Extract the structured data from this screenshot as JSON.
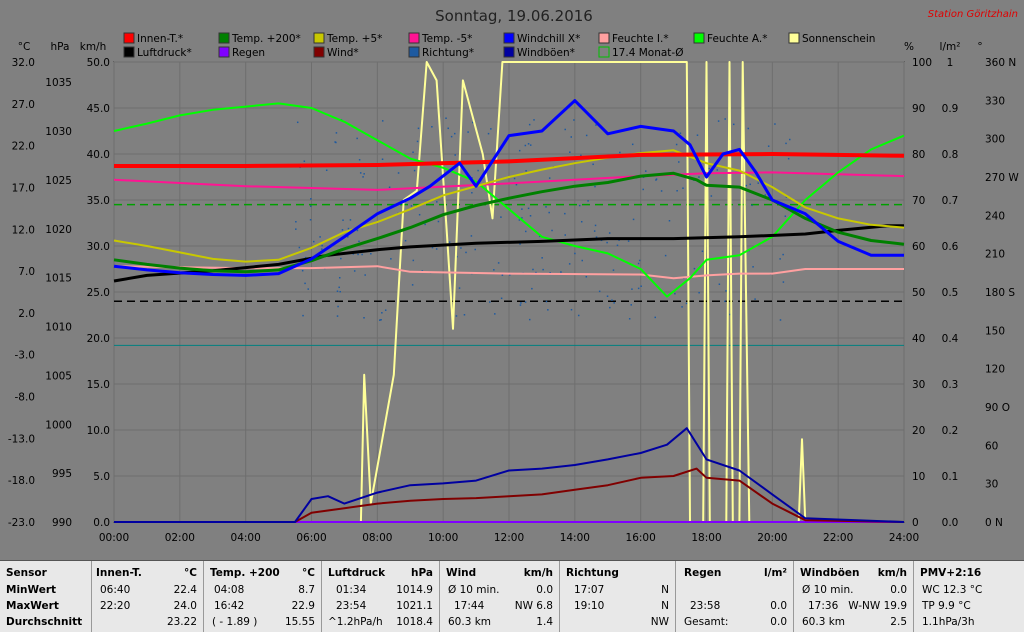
{
  "header": {
    "title": "Sonntag, 19.06.2016",
    "station": "Station Göritzhain"
  },
  "legend": [
    {
      "label": "Innen-T.*",
      "color": "#ff0000",
      "hollow": false
    },
    {
      "label": "Temp. +200*",
      "color": "#008000",
      "hollow": false
    },
    {
      "label": "Temp. +5*",
      "color": "#c8c800",
      "hollow": false
    },
    {
      "label": "Temp. -5*",
      "color": "#ff1493",
      "hollow": false
    },
    {
      "label": "Windchill X*",
      "color": "#0000ff",
      "hollow": false
    },
    {
      "label": "Feuchte I.*",
      "color": "#ffa0a0",
      "hollow": false
    },
    {
      "label": "Feuchte A.*",
      "color": "#00ff00",
      "hollow": false
    },
    {
      "label": "Sonnenschein",
      "color": "#ffff99",
      "hollow": false
    },
    {
      "label": "Luftdruck*",
      "color": "#000000",
      "hollow": false
    },
    {
      "label": "Regen",
      "color": "#8000ff",
      "hollow": false
    },
    {
      "label": "Wind*",
      "color": "#800000",
      "hollow": false
    },
    {
      "label": "Richtung*",
      "color": "#1e5aa0",
      "hollow": false
    },
    {
      "label": "Windböen*",
      "color": "#0000a0",
      "hollow": false
    },
    {
      "label": "17.4 Monat-Ø",
      "color": "#00c000",
      "hollow": true
    }
  ],
  "axes": {
    "units": {
      "temp": "°C",
      "press": "hPa",
      "wind": "km/h",
      "hum": "%",
      "rain": "l/m²",
      "dir": "°"
    },
    "temp_ticks": [
      "32.0",
      "27.0",
      "22.0",
      "17.0",
      "12.0",
      "7.0",
      "2.0",
      "-3.0",
      "-8.0",
      "-13.0",
      "-18.0",
      "-23.0"
    ],
    "press_ticks": [
      "1035",
      "1030",
      "1025",
      "1020",
      "1015",
      "1010",
      "1005",
      "1000",
      "995",
      "990"
    ],
    "wind_ticks": [
      "50.0",
      "45.0",
      "40.0",
      "35.0",
      "30.0",
      "25.0",
      "20.0",
      "15.0",
      "10.0",
      "5.0",
      "0.0"
    ],
    "hum_ticks": [
      "100",
      "90",
      "80",
      "70",
      "60",
      "50",
      "40",
      "30",
      "20",
      "10",
      "0"
    ],
    "rain_ticks": [
      "1",
      "0.9",
      "0.8",
      "0.7",
      "0.6",
      "0.5",
      "0.4",
      "0.3",
      "0.2",
      "0.1",
      "0.0"
    ],
    "dir_ticks": [
      "360 N",
      "330",
      "300",
      "270 W",
      "240",
      "210",
      "180 S",
      "150",
      "120",
      "90 O",
      "60",
      "30",
      "0 N"
    ],
    "x_ticks": [
      "00:00",
      "02:00",
      "04:00",
      "06:00",
      "08:00",
      "10:00",
      "12:00",
      "14:00",
      "16:00",
      "18:00",
      "20:00",
      "22:00",
      "24:00"
    ]
  },
  "chart_data": {
    "type": "line",
    "x_unit": "hour",
    "xlim": [
      0,
      24
    ],
    "ylim_wind": [
      0,
      50
    ],
    "ylim_hum": [
      0,
      100
    ],
    "ylim_temp": [
      -23,
      32
    ],
    "ylim_press": [
      990,
      1035
    ],
    "grid": true,
    "series": [
      {
        "name": "Innen-T.*",
        "axis": "wind",
        "color": "#ff0000",
        "width": 4,
        "points": [
          [
            0,
            38.7
          ],
          [
            4,
            38.7
          ],
          [
            8,
            38.8
          ],
          [
            12,
            39.2
          ],
          [
            16,
            39.9
          ],
          [
            20,
            40.0
          ],
          [
            24,
            39.8
          ]
        ]
      },
      {
        "name": "Luftdruck*",
        "axis": "wind",
        "color": "#000000",
        "width": 3,
        "points": [
          [
            0,
            26.2
          ],
          [
            1,
            26.8
          ],
          [
            3,
            27.3
          ],
          [
            5,
            28.0
          ],
          [
            6.5,
            29.0
          ],
          [
            8,
            29.6
          ],
          [
            9,
            29.9
          ],
          [
            11,
            30.3
          ],
          [
            13,
            30.5
          ],
          [
            15,
            30.8
          ],
          [
            17,
            30.8
          ],
          [
            19,
            31.0
          ],
          [
            21,
            31.3
          ],
          [
            22,
            31.7
          ],
          [
            23.5,
            32.2
          ],
          [
            24,
            32.2
          ]
        ]
      },
      {
        "name": "Temp. +5*",
        "axis": "wind",
        "color": "#c8c800",
        "width": 2,
        "points": [
          [
            0,
            30.6
          ],
          [
            1,
            30.0
          ],
          [
            2,
            29.3
          ],
          [
            3,
            28.6
          ],
          [
            4,
            28.3
          ],
          [
            5,
            28.5
          ],
          [
            6,
            29.8
          ],
          [
            7,
            31.5
          ],
          [
            8,
            32.6
          ],
          [
            9,
            34.0
          ],
          [
            10,
            35.5
          ],
          [
            11,
            36.5
          ],
          [
            12,
            37.5
          ],
          [
            13,
            38.3
          ],
          [
            14,
            39.0
          ],
          [
            15,
            39.6
          ],
          [
            16,
            40.1
          ],
          [
            17,
            40.4
          ],
          [
            18,
            39.0
          ],
          [
            19,
            38.2
          ],
          [
            20,
            36.4
          ],
          [
            21,
            34.2
          ],
          [
            22,
            33.0
          ],
          [
            23,
            32.3
          ],
          [
            24,
            32.0
          ]
        ]
      },
      {
        "name": "Temp. +200*",
        "axis": "wind",
        "color": "#008000",
        "width": 3,
        "points": [
          [
            0,
            28.5
          ],
          [
            1,
            28.0
          ],
          [
            2,
            27.6
          ],
          [
            3,
            27.3
          ],
          [
            4,
            27.2
          ],
          [
            5,
            27.4
          ],
          [
            6,
            28.4
          ],
          [
            7,
            29.7
          ],
          [
            8,
            30.8
          ],
          [
            9,
            32.0
          ],
          [
            10,
            33.4
          ],
          [
            11,
            34.4
          ],
          [
            12,
            35.2
          ],
          [
            13,
            35.9
          ],
          [
            14,
            36.5
          ],
          [
            15,
            36.9
          ],
          [
            16,
            37.6
          ],
          [
            17,
            37.9
          ],
          [
            17.7,
            37.2
          ],
          [
            18,
            36.6
          ],
          [
            19,
            36.4
          ],
          [
            20,
            35.0
          ],
          [
            21,
            33.0
          ],
          [
            22,
            31.5
          ],
          [
            23,
            30.6
          ],
          [
            24,
            30.2
          ]
        ]
      },
      {
        "name": "Windchill X*",
        "axis": "wind",
        "color": "#0000ff",
        "width": 3,
        "points": [
          [
            0,
            27.8
          ],
          [
            1,
            27.4
          ],
          [
            2,
            27.1
          ],
          [
            3,
            26.9
          ],
          [
            4,
            26.8
          ],
          [
            5,
            27.0
          ],
          [
            6,
            28.6
          ],
          [
            7,
            31.0
          ],
          [
            8,
            33.5
          ],
          [
            9,
            35.2
          ],
          [
            9.6,
            36.5
          ],
          [
            10.5,
            39.0
          ],
          [
            11,
            36.5
          ],
          [
            12,
            42.0
          ],
          [
            13,
            42.5
          ],
          [
            14,
            45.8
          ],
          [
            15,
            42.2
          ],
          [
            16,
            43.0
          ],
          [
            17,
            42.5
          ],
          [
            17.5,
            41.0
          ],
          [
            18,
            37.5
          ],
          [
            18.5,
            40.0
          ],
          [
            19,
            40.5
          ],
          [
            19.5,
            38.0
          ],
          [
            20,
            35.0
          ],
          [
            21,
            33.5
          ],
          [
            22,
            30.5
          ],
          [
            23,
            29.0
          ],
          [
            24,
            29.0
          ]
        ]
      },
      {
        "name": "Temp. -5*",
        "axis": "wind",
        "color": "#ff1493",
        "width": 2,
        "points": [
          [
            0,
            37.2
          ],
          [
            4,
            36.5
          ],
          [
            8,
            36.1
          ],
          [
            12,
            36.8
          ],
          [
            16,
            37.6
          ],
          [
            18,
            37.9
          ],
          [
            20,
            38.0
          ],
          [
            24,
            37.6
          ]
        ]
      },
      {
        "name": "Feuchte I.*",
        "axis": "wind",
        "color": "#ffa0a0",
        "width": 2,
        "points": [
          [
            0,
            27.8
          ],
          [
            2,
            27.7
          ],
          [
            4,
            27.6
          ],
          [
            6,
            27.6
          ],
          [
            8,
            27.8
          ],
          [
            9,
            27.2
          ],
          [
            12,
            27.0
          ],
          [
            16,
            26.9
          ],
          [
            17,
            26.5
          ],
          [
            18,
            26.8
          ],
          [
            19,
            27.0
          ],
          [
            20,
            27.0
          ],
          [
            21,
            27.5
          ],
          [
            24,
            27.5
          ]
        ]
      },
      {
        "name": "Feuchte A.*",
        "axis": "wind",
        "color": "#00ff00",
        "width": 2,
        "points": [
          [
            0,
            42.5
          ],
          [
            1,
            43.3
          ],
          [
            2,
            44.2
          ],
          [
            3,
            44.8
          ],
          [
            5,
            45.5
          ],
          [
            6,
            45.0
          ],
          [
            7,
            43.5
          ],
          [
            8,
            41.5
          ],
          [
            9,
            39.5
          ],
          [
            10,
            38.5
          ],
          [
            11,
            37.0
          ],
          [
            12,
            34.0
          ],
          [
            13,
            31.0
          ],
          [
            14,
            30.0
          ],
          [
            15,
            29.2
          ],
          [
            16,
            27.5
          ],
          [
            16.8,
            24.5
          ],
          [
            17.5,
            26.5
          ],
          [
            18,
            28.5
          ],
          [
            19,
            29.0
          ],
          [
            20,
            31.0
          ],
          [
            21,
            35.0
          ],
          [
            22,
            38.0
          ],
          [
            23,
            40.5
          ],
          [
            24,
            42.0
          ]
        ]
      },
      {
        "name": "Sonnenschein",
        "axis": "wind",
        "color": "#ffff99",
        "width": 2,
        "points": [
          [
            0,
            0
          ],
          [
            7.5,
            0
          ],
          [
            7.6,
            16
          ],
          [
            7.8,
            2
          ],
          [
            8.5,
            16
          ],
          [
            8.8,
            35
          ],
          [
            9.2,
            36
          ],
          [
            9.5,
            50
          ],
          [
            9.8,
            48
          ],
          [
            10.1,
            32
          ],
          [
            10.3,
            21
          ],
          [
            10.6,
            48
          ],
          [
            11.2,
            40
          ],
          [
            11.5,
            33
          ],
          [
            11.8,
            50
          ],
          [
            12.2,
            50
          ],
          [
            17.4,
            50
          ],
          [
            17.5,
            0
          ],
          [
            17.9,
            0
          ],
          [
            18.0,
            50
          ],
          [
            18.1,
            0
          ],
          [
            18.6,
            0
          ],
          [
            18.7,
            50
          ],
          [
            18.8,
            0
          ],
          [
            19.0,
            0
          ],
          [
            19.1,
            50
          ],
          [
            19.3,
            0
          ],
          [
            20.8,
            0
          ],
          [
            20.9,
            9
          ],
          [
            21.0,
            0
          ],
          [
            24,
            0
          ]
        ]
      },
      {
        "name": "Wind*",
        "axis": "wind",
        "color": "#800000",
        "width": 2,
        "points": [
          [
            0,
            0
          ],
          [
            5.5,
            0
          ],
          [
            6,
            1.0
          ],
          [
            7,
            1.5
          ],
          [
            8,
            2.0
          ],
          [
            9,
            2.3
          ],
          [
            10,
            2.5
          ],
          [
            11,
            2.6
          ],
          [
            12,
            2.8
          ],
          [
            13,
            3.0
          ],
          [
            14,
            3.5
          ],
          [
            15,
            4.0
          ],
          [
            16,
            4.8
          ],
          [
            17,
            5.0
          ],
          [
            17.7,
            5.8
          ],
          [
            18,
            4.8
          ],
          [
            19,
            4.5
          ],
          [
            20,
            2.0
          ],
          [
            21,
            0.2
          ],
          [
            24,
            0
          ]
        ]
      },
      {
        "name": "Windböen*",
        "axis": "wind",
        "color": "#0000a0",
        "width": 2,
        "points": [
          [
            0,
            0
          ],
          [
            5.5,
            0
          ],
          [
            6,
            2.5
          ],
          [
            6.5,
            2.8
          ],
          [
            7,
            2.0
          ],
          [
            8,
            3.2
          ],
          [
            9,
            4.0
          ],
          [
            10,
            4.2
          ],
          [
            11,
            4.5
          ],
          [
            12,
            5.6
          ],
          [
            13,
            5.8
          ],
          [
            14,
            6.2
          ],
          [
            15,
            6.8
          ],
          [
            16,
            7.5
          ],
          [
            16.8,
            8.4
          ],
          [
            17.4,
            10.2
          ],
          [
            18,
            6.8
          ],
          [
            19,
            5.6
          ],
          [
            20,
            3.0
          ],
          [
            21,
            0.4
          ],
          [
            24,
            0
          ]
        ]
      },
      {
        "name": "Regen",
        "axis": "wind",
        "color": "#8000ff",
        "width": 2,
        "points": [
          [
            0,
            0
          ],
          [
            24,
            0
          ]
        ]
      }
    ],
    "reference_lines": [
      {
        "label": "17.4 Monat-Ø",
        "axis": "wind",
        "value": 34.5,
        "color": "#00a000",
        "dash": true
      },
      {
        "axis": "wind",
        "value": 24.0,
        "color": "#000000",
        "dash": true
      },
      {
        "axis": "wind",
        "value": 19.2,
        "color": "#008080",
        "dash": false
      }
    ]
  },
  "stats": {
    "col0": {
      "h": "Sensor",
      "r1": "MinWert",
      "r2": "MaxWert",
      "r3": "Durchschnitt"
    },
    "col1": {
      "h": "Innen-T.",
      "u": "°C",
      "r1a": "06:40",
      "r1b": "22.4",
      "r2a": "22:20",
      "r2b": "24.0",
      "r3b": "23.22"
    },
    "col2": {
      "h": "Temp. +200",
      "u": "°C",
      "r1a": "04:08",
      "r1b": "8.7",
      "r2a": "16:42",
      "r2b": "22.9",
      "r3a": "( - 1.89 )",
      "r3b": "15.55"
    },
    "col3": {
      "h": "Luftdruck",
      "u": "hPa",
      "r1a": "01:34",
      "r1b": "1014.9",
      "r2a": "23:54",
      "r2b": "1021.1",
      "r3a": "^1.2hPa/h",
      "r3b": "1018.4"
    },
    "col4": {
      "h": "Wind",
      "u": "km/h",
      "r1a": "Ø 10 min.",
      "r1b": "0.0",
      "r2a": "17:44",
      "r2b": "NW 6.8",
      "r3a": "60.3 km",
      "r3b": "1.4"
    },
    "col5": {
      "h": "Richtung",
      "r1a": "17:07",
      "r1b": "N",
      "r2a": "19:10",
      "r2b": "N",
      "r3b": "NW"
    },
    "col6": {
      "h": "Regen",
      "u": "l/m²",
      "r2a": "23:58",
      "r2b": "0.0",
      "r3a": "Gesamt:",
      "r3b": "0.0"
    },
    "col7": {
      "h": "Windböen",
      "u": "km/h",
      "r1a": "Ø 10 min.",
      "r1b": "0.0",
      "r2a": "17:36",
      "r2b": "W-NW 19.9",
      "r3a": "60.3 km",
      "r3b": "2.5"
    },
    "col8": {
      "h": "PMV+2:16",
      "r1": "WC 12.3 °C",
      "r2": "TP 9.9 °C",
      "r3": "1.1hPa/3h"
    }
  }
}
